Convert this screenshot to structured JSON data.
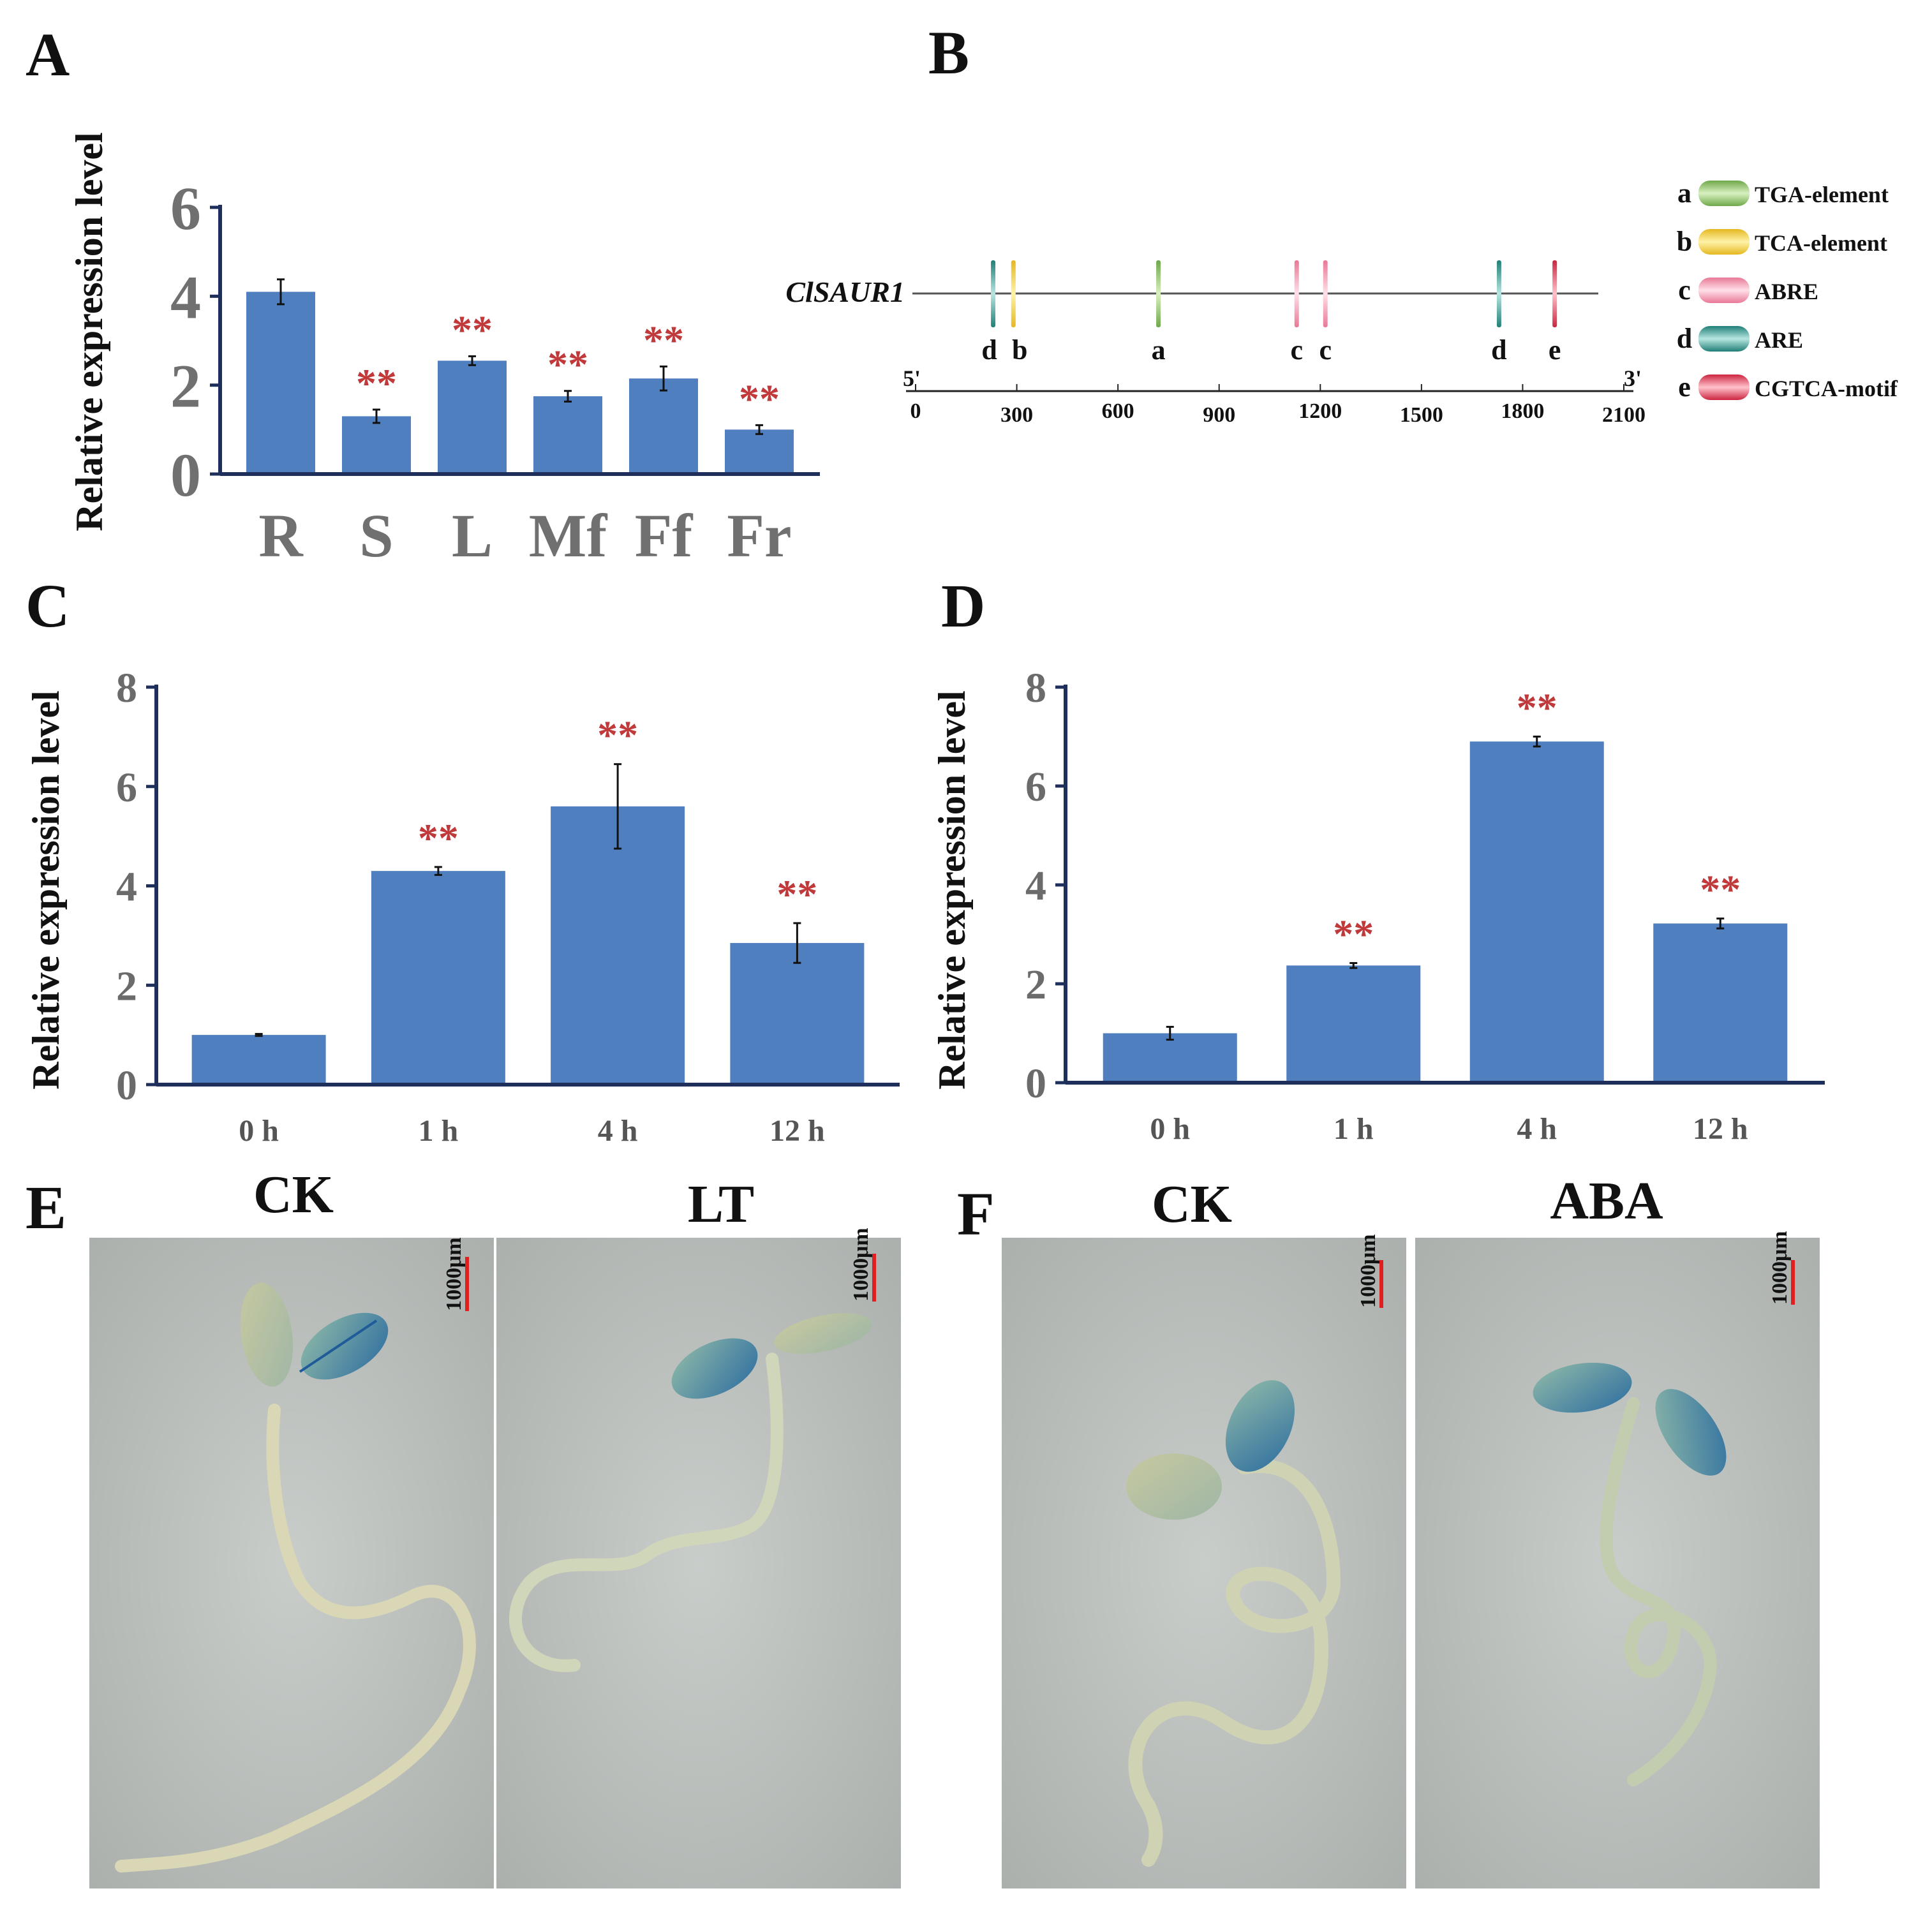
{
  "panels": {
    "A": "A",
    "B": "B",
    "C": "C",
    "D": "D",
    "E": "E",
    "F": "F"
  },
  "chart_data": [
    {
      "panel": "A",
      "type": "bar",
      "categories": [
        "R",
        "S",
        "L",
        "Mf",
        "Ff",
        "Fr"
      ],
      "values": [
        4.1,
        1.3,
        2.55,
        1.75,
        2.15,
        1.0
      ],
      "errors": [
        0.28,
        0.15,
        0.1,
        0.12,
        0.27,
        0.1
      ],
      "significance": [
        "",
        "**",
        "**",
        "**",
        "**",
        "**"
      ],
      "ylabel": "Relative expression level",
      "ylim": [
        0,
        6
      ],
      "yticks": [
        0,
        2,
        4,
        6
      ]
    },
    {
      "panel": "C",
      "type": "bar",
      "categories": [
        "0 h",
        "1 h",
        "4 h",
        "12 h"
      ],
      "values": [
        1.0,
        4.3,
        5.6,
        2.85
      ],
      "errors": [
        0.02,
        0.08,
        0.85,
        0.4
      ],
      "significance": [
        "",
        "**",
        "**",
        "**"
      ],
      "ylabel": "Relative expression level",
      "ylim": [
        0,
        8
      ],
      "yticks": [
        0,
        2,
        4,
        6,
        8
      ]
    },
    {
      "panel": "D",
      "type": "bar",
      "categories": [
        "0 h",
        "1 h",
        "4 h",
        "12 h"
      ],
      "values": [
        1.0,
        2.37,
        6.9,
        3.22
      ],
      "errors": [
        0.13,
        0.05,
        0.1,
        0.1
      ],
      "significance": [
        "",
        "**",
        "**",
        "**"
      ],
      "ylabel": "Relative expression level",
      "ylim": [
        0,
        8
      ],
      "yticks": [
        0,
        2,
        4,
        6,
        8
      ]
    }
  ],
  "promoter": {
    "gene": "ClSAUR1",
    "five_prime": "5'",
    "three_prime": "3'",
    "scale_ticks": [
      "0",
      "300",
      "600",
      "900",
      "1200",
      "1500",
      "1800",
      "2100"
    ],
    "scale_max": 2100,
    "markers": [
      {
        "pos": 230,
        "type": "d"
      },
      {
        "pos": 290,
        "type": "b"
      },
      {
        "pos": 720,
        "type": "a"
      },
      {
        "pos": 1130,
        "type": "c"
      },
      {
        "pos": 1215,
        "type": "c"
      },
      {
        "pos": 1730,
        "type": "d"
      },
      {
        "pos": 1895,
        "type": "e"
      }
    ],
    "legend": [
      {
        "key": "a",
        "label": "TGA-element",
        "color": "#8cc063"
      },
      {
        "key": "b",
        "label": "TCA-element",
        "color": "#f0cc3c"
      },
      {
        "key": "c",
        "label": "ABRE",
        "color": "#f08ca4"
      },
      {
        "key": "d",
        "label": "ARE",
        "color": "#2f9b90"
      },
      {
        "key": "e",
        "label": "CGTCA-motif",
        "color": "#dd3f58"
      }
    ]
  },
  "images": {
    "E": {
      "left": "CK",
      "right": "LT"
    },
    "F": {
      "left": "CK",
      "right": "ABA"
    },
    "scale_bar": "1000μm"
  }
}
